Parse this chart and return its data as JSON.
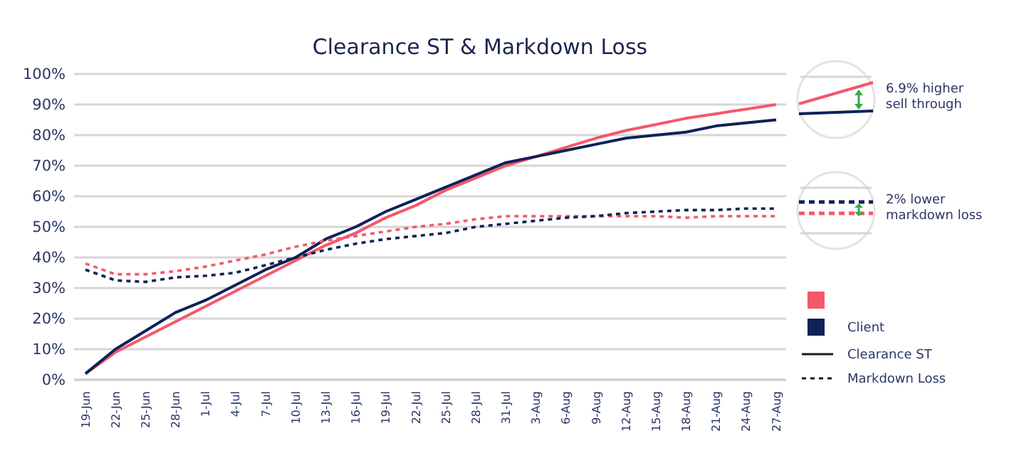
{
  "chart_data": {
    "type": "line",
    "title": "Clearance ST & Markdown Loss",
    "categories": [
      "19-Jun",
      "22-Jun",
      "25-Jun",
      "28-Jun",
      "1-Jul",
      "4-Jul",
      "7-Jul",
      "10-Jul",
      "13-Jul",
      "16-Jul",
      "19-Jul",
      "22-Jul",
      "25-Jul",
      "28-Jul",
      "31-Jul",
      "3-Aug",
      "6-Aug",
      "9-Aug",
      "12-Aug",
      "15-Aug",
      "18-Aug",
      "21-Aug",
      "24-Aug",
      "27-Aug"
    ],
    "series": [
      {
        "color": "#f4586a",
        "line_style": "solid",
        "values": [
          2,
          9,
          14,
          19,
          24,
          29,
          34,
          39,
          44,
          48,
          53,
          57,
          62,
          66,
          70,
          73,
          76,
          79,
          81.5,
          83.5,
          85.5,
          87,
          88.5,
          90
        ]
      },
      {
        "name": "Client",
        "color": "#0f2257",
        "line_style": "solid",
        "values": [
          2,
          10,
          16,
          22,
          26,
          31,
          36,
          40,
          46,
          50,
          55,
          59,
          63,
          67,
          71,
          73,
          75,
          77,
          79,
          80,
          81,
          83,
          84,
          85
        ]
      },
      {
        "color": "#f4586a",
        "line_style": "dotted",
        "values": [
          38,
          34.5,
          34.5,
          35.5,
          37,
          39,
          41,
          43.5,
          45.5,
          47,
          48.5,
          50,
          51,
          52.5,
          53.5,
          53.5,
          53.5,
          53.5,
          53.5,
          53.5,
          53,
          53.5,
          53.5,
          53.5
        ]
      },
      {
        "color": "#0f2257",
        "line_style": "dotted",
        "values": [
          36,
          32.5,
          32,
          33.5,
          34,
          35,
          37.5,
          40,
          42.5,
          44.5,
          46,
          47,
          48,
          50,
          51,
          52,
          53,
          53.5,
          54.5,
          55,
          55.5,
          55.5,
          56,
          56
        ]
      }
    ],
    "ylim": [
      0,
      100
    ],
    "yticks": [
      {
        "value": 0,
        "label": "0%"
      },
      {
        "value": 10,
        "label": "10%"
      },
      {
        "value": 20,
        "label": "20%"
      },
      {
        "value": 30,
        "label": "30%"
      },
      {
        "value": 40,
        "label": "40%"
      },
      {
        "value": 50,
        "label": "50%"
      },
      {
        "value": 60,
        "label": "60%"
      },
      {
        "value": 70,
        "label": "70%"
      },
      {
        "value": 80,
        "label": "80%"
      },
      {
        "value": 90,
        "label": "90%"
      },
      {
        "value": 100,
        "label": "100%"
      }
    ],
    "grid": "y",
    "legend": "right",
    "annotations": [
      "6.9% higher sell through",
      "2% lower markdown loss",
      "Clearance ST",
      "Markdown Loss"
    ]
  }
}
